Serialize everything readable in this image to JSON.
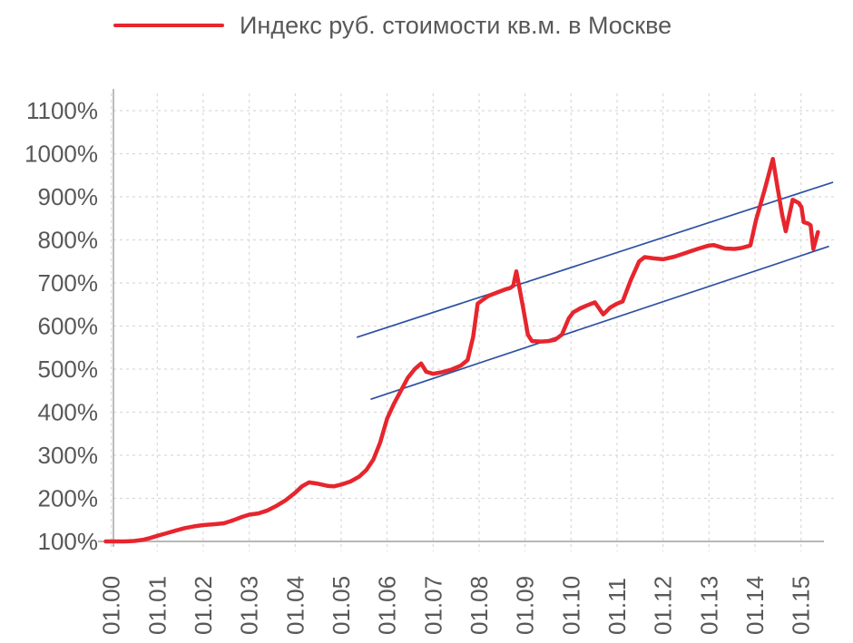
{
  "legend": {
    "label": "Индекс руб. стоимости кв.м. в Москве"
  },
  "colors": {
    "series": "#e7252d",
    "channel": "#2d51a3",
    "grid": "#d9d9d9",
    "axis": "#a0a0a2",
    "text": "#58585a",
    "background": "#ffffff"
  },
  "chart_data": {
    "type": "line",
    "title": "Индекс руб. стоимости кв.м. в Москве",
    "xlabel": "",
    "ylabel": "",
    "grid": true,
    "legend_position": "top",
    "ylim": [
      100,
      1150
    ],
    "xlim_years": [
      0,
      15.8
    ],
    "y_tick_format": "percent",
    "y_ticks": [
      {
        "value": 1100,
        "label": "1100%"
      },
      {
        "value": 1000,
        "label": "1000%"
      },
      {
        "value": 900,
        "label": "900%"
      },
      {
        "value": 800,
        "label": "800%"
      },
      {
        "value": 700,
        "label": "700%"
      },
      {
        "value": 600,
        "label": "600%"
      },
      {
        "value": 500,
        "label": "500%"
      },
      {
        "value": 400,
        "label": "400%"
      },
      {
        "value": 300,
        "label": "300%"
      },
      {
        "value": 200,
        "label": "200%"
      },
      {
        "value": 100,
        "label": "100%"
      }
    ],
    "x_ticks": [
      {
        "t": 0,
        "label": "01.00"
      },
      {
        "t": 1,
        "label": "01.01"
      },
      {
        "t": 2,
        "label": "01.02"
      },
      {
        "t": 3,
        "label": "01.03"
      },
      {
        "t": 4,
        "label": "01.04"
      },
      {
        "t": 5,
        "label": "01.05"
      },
      {
        "t": 6,
        "label": "01.06"
      },
      {
        "t": 7,
        "label": "01.07"
      },
      {
        "t": 8,
        "label": "01.08"
      },
      {
        "t": 9,
        "label": "01.09"
      },
      {
        "t": 10,
        "label": "01.10"
      },
      {
        "t": 11,
        "label": "01.11"
      },
      {
        "t": 12,
        "label": "01.12"
      },
      {
        "t": 13,
        "label": "01.13"
      },
      {
        "t": 14,
        "label": "01.14"
      },
      {
        "t": 15,
        "label": "01.15"
      }
    ],
    "series": [
      {
        "name": "Индекс руб. стоимости кв.м. в Москве",
        "units": "percent of Jan 2000",
        "points": [
          [
            -0.12,
            100
          ],
          [
            0.0,
            100
          ],
          [
            0.3,
            100
          ],
          [
            0.5,
            101
          ],
          [
            0.7,
            104
          ],
          [
            0.85,
            108
          ],
          [
            1.0,
            113
          ],
          [
            1.2,
            119
          ],
          [
            1.4,
            125
          ],
          [
            1.6,
            131
          ],
          [
            1.8,
            135
          ],
          [
            2.0,
            138
          ],
          [
            2.25,
            140
          ],
          [
            2.45,
            142
          ],
          [
            2.65,
            149
          ],
          [
            2.85,
            157
          ],
          [
            3.0,
            162
          ],
          [
            3.2,
            165
          ],
          [
            3.4,
            172
          ],
          [
            3.6,
            183
          ],
          [
            3.8,
            196
          ],
          [
            4.0,
            213
          ],
          [
            4.15,
            228
          ],
          [
            4.3,
            237
          ],
          [
            4.5,
            234
          ],
          [
            4.7,
            229
          ],
          [
            4.85,
            228
          ],
          [
            5.0,
            232
          ],
          [
            5.2,
            239
          ],
          [
            5.4,
            251
          ],
          [
            5.55,
            266
          ],
          [
            5.7,
            290
          ],
          [
            5.85,
            330
          ],
          [
            6.0,
            385
          ],
          [
            6.15,
            420
          ],
          [
            6.3,
            450
          ],
          [
            6.45,
            480
          ],
          [
            6.6,
            500
          ],
          [
            6.74,
            513
          ],
          [
            6.85,
            494
          ],
          [
            7.0,
            489
          ],
          [
            7.2,
            493
          ],
          [
            7.4,
            499
          ],
          [
            7.6,
            508
          ],
          [
            7.75,
            521
          ],
          [
            7.87,
            575
          ],
          [
            7.97,
            652
          ],
          [
            8.07,
            660
          ],
          [
            8.2,
            670
          ],
          [
            8.4,
            678
          ],
          [
            8.57,
            685
          ],
          [
            8.67,
            688
          ],
          [
            8.74,
            693
          ],
          [
            8.81,
            727
          ],
          [
            8.96,
            641
          ],
          [
            9.06,
            580
          ],
          [
            9.15,
            565
          ],
          [
            9.35,
            564
          ],
          [
            9.5,
            565
          ],
          [
            9.65,
            568
          ],
          [
            9.8,
            580
          ],
          [
            9.95,
            618
          ],
          [
            10.05,
            632
          ],
          [
            10.2,
            641
          ],
          [
            10.35,
            648
          ],
          [
            10.52,
            655
          ],
          [
            10.7,
            627
          ],
          [
            10.85,
            643
          ],
          [
            11.0,
            652
          ],
          [
            11.12,
            657
          ],
          [
            11.3,
            707
          ],
          [
            11.48,
            750
          ],
          [
            11.6,
            760
          ],
          [
            11.8,
            757
          ],
          [
            12.0,
            755
          ],
          [
            12.25,
            761
          ],
          [
            12.5,
            770
          ],
          [
            12.75,
            779
          ],
          [
            13.0,
            787
          ],
          [
            13.1,
            788
          ],
          [
            13.35,
            780
          ],
          [
            13.55,
            779
          ],
          [
            13.7,
            781
          ],
          [
            13.9,
            787
          ],
          [
            14.02,
            845
          ],
          [
            14.12,
            883
          ],
          [
            14.22,
            920
          ],
          [
            14.39,
            988
          ],
          [
            14.49,
            922
          ],
          [
            14.59,
            859
          ],
          [
            14.67,
            820
          ],
          [
            14.82,
            893
          ],
          [
            14.95,
            886
          ],
          [
            15.01,
            876
          ],
          [
            15.06,
            841
          ],
          [
            15.15,
            838
          ],
          [
            15.21,
            834
          ],
          [
            15.27,
            779
          ],
          [
            15.37,
            818
          ]
        ]
      }
    ],
    "trend_channel": {
      "upper": {
        "from": [
          5.34,
          574
        ],
        "to": [
          15.7,
          934
        ]
      },
      "lower": {
        "from": [
          5.64,
          430
        ],
        "to": [
          15.61,
          785
        ]
      }
    }
  }
}
